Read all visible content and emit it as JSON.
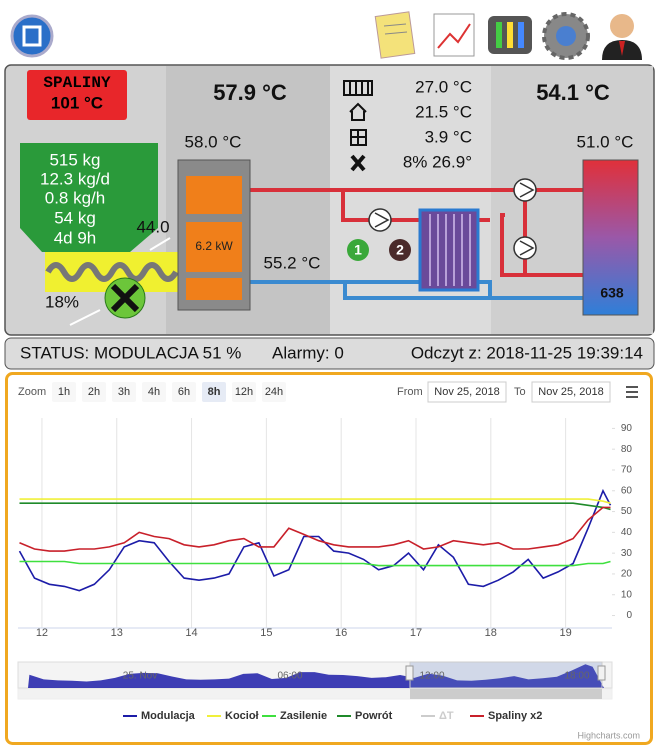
{
  "panel": {
    "exhaust_label": "SPALINY",
    "exhaust_temp": "101 °C",
    "boiler_temp": "57.9 °C",
    "boiler_top_temp": "58.0 °C",
    "fuel": [
      "515 kg",
      "12.3 kg/d",
      "0.8 kg/h",
      "54 kg",
      "4d 9h"
    ],
    "feeder_value": "44.0",
    "fan_value": "18%",
    "power": "6.2 kW",
    "return_temp": "55.2 °C",
    "room_temps": [
      "27.0 °C",
      "21.5 °C",
      "3.9 °C",
      "8% 26.9°"
    ],
    "pump_1": "1",
    "pump_2": "2",
    "tank_temp": "54.1 °C",
    "tank_top_temp": "51.0 °C",
    "tank_value": "638"
  },
  "status": {
    "mode": "STATUS: MODULACJA 51 %",
    "alarms": "Alarmy: 0",
    "read_time": "Odczyt z: 2018-11-25 19:39:14"
  },
  "chart_data": {
    "type": "line",
    "zoom_label": "Zoom",
    "zoom_buttons": [
      "1h",
      "2h",
      "3h",
      "4h",
      "6h",
      "8h",
      "12h",
      "24h"
    ],
    "zoom_selected": 5,
    "from_label": "From",
    "from_date": "Nov 25, 2018",
    "to_label": "To",
    "to_date": "Nov 25, 2018",
    "x": [
      11.7,
      11.9,
      12.1,
      12.3,
      12.5,
      12.7,
      12.9,
      13.1,
      13.3,
      13.5,
      13.7,
      13.9,
      14.1,
      14.3,
      14.5,
      14.7,
      14.9,
      15.1,
      15.3,
      15.5,
      15.7,
      15.9,
      16.1,
      16.3,
      16.5,
      16.7,
      16.9,
      17.1,
      17.3,
      17.5,
      17.7,
      17.9,
      18.1,
      18.3,
      18.5,
      18.7,
      18.9,
      19.1,
      19.3,
      19.5,
      19.6
    ],
    "xlim": [
      11.68,
      19.62
    ],
    "xticks": [
      12,
      13,
      14,
      15,
      16,
      17,
      18,
      19
    ],
    "ylim": [
      -6,
      95
    ],
    "yticks": [
      0,
      10,
      20,
      30,
      40,
      50,
      60,
      70,
      80,
      90
    ],
    "grid": true,
    "series": [
      {
        "name": "Modulacja",
        "color": "#1c1ca8",
        "values": [
          31,
          18,
          15,
          14,
          12,
          15,
          22,
          33,
          36,
          35,
          26,
          18,
          17,
          18,
          20,
          33,
          35,
          19,
          22,
          38,
          38,
          31,
          30,
          27,
          22,
          24,
          30,
          22,
          34,
          28,
          15,
          14,
          17,
          21,
          27,
          18,
          21,
          25,
          42,
          60,
          53
        ]
      },
      {
        "name": "Kocioł",
        "color": "#f0f03a",
        "values": [
          56,
          56,
          56,
          56,
          56,
          56,
          56,
          56,
          56,
          56,
          56,
          56,
          56,
          56,
          56,
          56,
          56,
          56,
          56,
          56,
          56,
          56,
          56,
          56,
          56,
          56,
          56,
          56,
          56,
          56,
          56,
          56,
          56,
          56,
          56,
          56,
          56,
          56,
          56,
          55,
          54
        ]
      },
      {
        "name": "Zasilenie",
        "color": "#3ee03e",
        "values": [
          26,
          26,
          26,
          26,
          25,
          25,
          25,
          25,
          25,
          25,
          25,
          25,
          25,
          25,
          25,
          25,
          25,
          25,
          25,
          25,
          25,
          25,
          25,
          25,
          24,
          24,
          24,
          24,
          24,
          24,
          24,
          24,
          24,
          24,
          24,
          24,
          24,
          24,
          25,
          25,
          26
        ]
      },
      {
        "name": "Powrót",
        "color": "#1f8a2a",
        "values": [
          54,
          54,
          54,
          54,
          54,
          54,
          54,
          54,
          54,
          54,
          54,
          54,
          54,
          54,
          54,
          54,
          54,
          54,
          54,
          54,
          54,
          54,
          54,
          54,
          54,
          54,
          54,
          54,
          54,
          54,
          54,
          54,
          54,
          54,
          54,
          54,
          54,
          54,
          53,
          52,
          51
        ]
      },
      {
        "name": "ΔT",
        "color": "#cccccc",
        "visible": false
      },
      {
        "name": "Spaliny x2",
        "color": "#c8202a",
        "values": [
          35,
          32,
          31,
          31,
          32,
          32,
          33,
          35,
          40,
          38,
          37,
          34,
          33,
          34,
          36,
          37,
          33,
          33,
          42,
          39,
          36,
          34,
          33,
          33,
          33,
          34,
          36,
          32,
          33,
          36,
          35,
          34,
          35,
          32,
          32,
          33,
          34,
          37,
          46,
          52,
          52
        ]
      }
    ],
    "navigator_labels": [
      "25. Nov",
      "06:00",
      "12:00",
      "18:00"
    ],
    "credits": "Highcharts.com"
  }
}
